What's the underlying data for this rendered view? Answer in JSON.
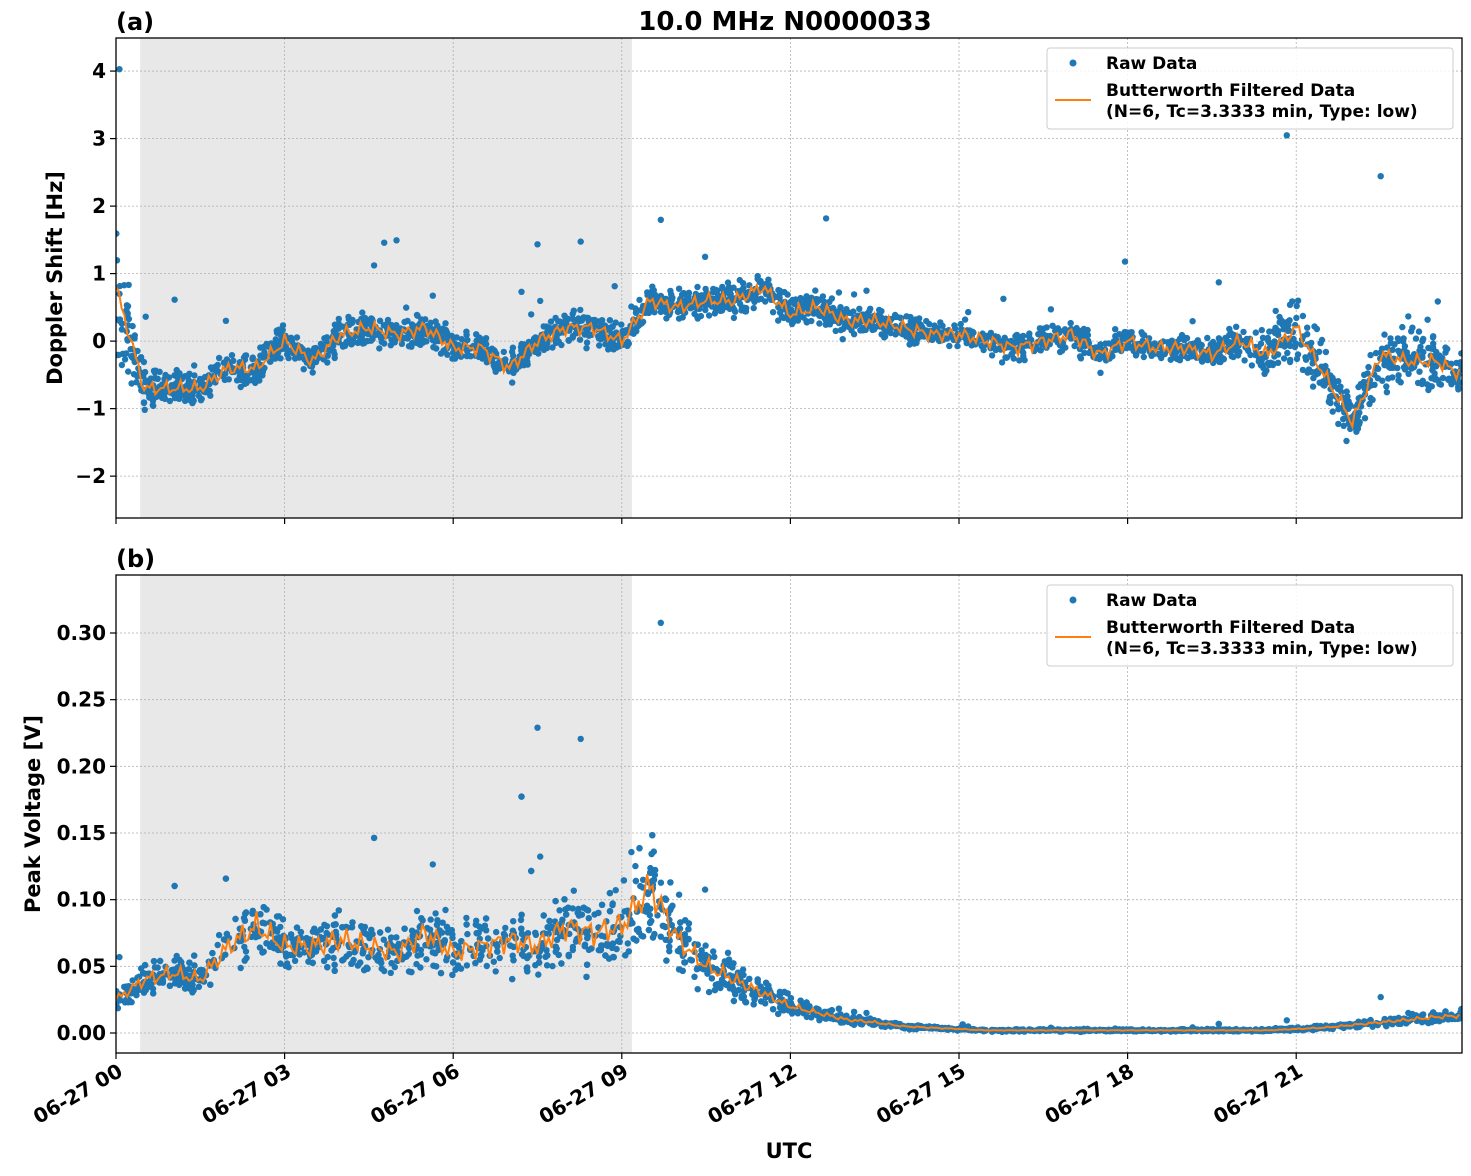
{
  "title": "10.0 MHz N0000033",
  "colors": {
    "raw": "#1f77b4",
    "filtered": "#ff7f0e",
    "night_shade": "#e8e8e8",
    "grid": "#b0b0b0"
  },
  "chart_data": [
    {
      "type": "scatter",
      "panel_label": "(a)",
      "ylabel": "Doppler Shift [Hz]",
      "xlabel": "",
      "xlim_hours_utc": [
        0,
        23.95
      ],
      "ylim": [
        -2.62,
        4.49
      ],
      "yticks": [
        -2,
        -1,
        0,
        1,
        2,
        3,
        4
      ],
      "ytick_labels": [
        "−2",
        "−1",
        "0",
        "1",
        "2",
        "3",
        "4"
      ],
      "grid": true,
      "legend_position": "top-right",
      "shaded_interval_hours_utc": [
        0.43,
        9.18
      ],
      "legend": [
        "Raw Data",
        "Butterworth Filtered Data",
        "(N=6, Tc=3.3333 min, Type: low)"
      ],
      "x_hours_utc": [
        0,
        0.5,
        1,
        1.5,
        2,
        2.5,
        3,
        3.5,
        4,
        4.5,
        5,
        5.5,
        6,
        6.5,
        7,
        7.5,
        8,
        8.5,
        9,
        9.5,
        10,
        10.5,
        11,
        11.5,
        12,
        12.5,
        13,
        13.5,
        14,
        14.5,
        15,
        15.5,
        16,
        16.5,
        17,
        17.5,
        18,
        18.5,
        19,
        19.5,
        20,
        20.5,
        21,
        21.5,
        22,
        22.5,
        23,
        23.5,
        23.95
      ],
      "series": [
        {
          "name": "Butterworth Filtered Data",
          "values": [
            0.8,
            -0.7,
            -0.7,
            -0.7,
            -0.4,
            -0.4,
            0,
            -0.3,
            0.1,
            0.2,
            0.1,
            0.2,
            -0.1,
            -0.1,
            -0.4,
            0,
            0.2,
            0.2,
            0,
            0.6,
            0.5,
            0.6,
            0.6,
            0.8,
            0.4,
            0.5,
            0.3,
            0.3,
            0.2,
            0.1,
            0.1,
            0,
            -0.1,
            0,
            0.1,
            -0.2,
            0,
            -0.1,
            -0.1,
            -0.2,
            0,
            -0.2,
            0.2,
            -0.5,
            -1.2,
            -0.2,
            -0.3,
            -0.3,
            -0.5
          ]
        },
        {
          "name": "Raw Data",
          "values": [
            0.8,
            -0.7,
            -0.7,
            -0.7,
            -0.4,
            -0.4,
            0,
            -0.3,
            0.1,
            0.2,
            0.1,
            0.2,
            -0.1,
            -0.1,
            -0.4,
            0,
            0.2,
            0.2,
            0,
            0.6,
            0.5,
            0.6,
            0.6,
            0.8,
            0.4,
            0.5,
            0.3,
            0.3,
            0.2,
            0.1,
            0.1,
            0,
            -0.1,
            0,
            0.1,
            -0.2,
            0,
            -0.1,
            -0.1,
            -0.2,
            0,
            -0.2,
            0.2,
            -0.5,
            -1.2,
            -0.2,
            -0.3,
            -0.3,
            -0.5
          ],
          "spread": [
            1.6,
            0.45,
            0.4,
            0.4,
            0.4,
            0.45,
            0.4,
            0.4,
            0.4,
            0.4,
            0.4,
            0.4,
            0.35,
            0.35,
            0.35,
            0.35,
            0.4,
            0.4,
            0.4,
            0.35,
            0.35,
            0.35,
            0.4,
            0.45,
            0.35,
            0.35,
            0.35,
            0.3,
            0.3,
            0.3,
            0.3,
            0.3,
            0.35,
            0.35,
            0.35,
            0.3,
            0.3,
            0.3,
            0.3,
            0.3,
            0.4,
            0.6,
            0.9,
            0.8,
            0.6,
            0.7,
            0.8,
            0.7,
            0.5
          ]
        }
      ]
    },
    {
      "type": "scatter",
      "panel_label": "(b)",
      "ylabel": "Peak Voltage [V]",
      "xlabel": "UTC",
      "xlim_hours_utc": [
        0,
        23.95
      ],
      "ylim": [
        -0.015,
        0.3435
      ],
      "yticks": [
        0,
        0.05,
        0.1,
        0.15,
        0.2,
        0.25,
        0.3
      ],
      "ytick_labels": [
        "0.00",
        "0.05",
        "0.10",
        "0.15",
        "0.20",
        "0.25",
        "0.30"
      ],
      "xticks_hours_utc": [
        0,
        3,
        6,
        9,
        12,
        15,
        18,
        21
      ],
      "xtick_labels": [
        "06-27 00",
        "06-27 03",
        "06-27 06",
        "06-27 09",
        "06-27 12",
        "06-27 15",
        "06-27 18",
        "06-27 21"
      ],
      "grid": true,
      "legend_position": "top-right",
      "shaded_interval_hours_utc": [
        0.43,
        9.18
      ],
      "legend": [
        "Raw Data",
        "Butterworth Filtered Data",
        "(N=6, Tc=3.3333 min, Type: low)"
      ],
      "x_hours_utc": [
        0,
        0.5,
        1,
        1.5,
        2,
        2.5,
        3,
        3.5,
        4,
        4.5,
        5,
        5.5,
        6,
        6.5,
        7,
        7.5,
        8,
        8.5,
        9,
        9.5,
        10,
        10.5,
        11,
        11.5,
        12,
        12.5,
        13,
        13.5,
        14,
        14.5,
        15,
        15.5,
        16,
        16.5,
        17,
        17.5,
        18,
        18.5,
        19,
        19.5,
        20,
        20.5,
        21,
        21.5,
        22,
        22.5,
        23,
        23.5,
        23.95
      ],
      "series": [
        {
          "name": "Butterworth Filtered Data",
          "values": [
            0.025,
            0.04,
            0.045,
            0.04,
            0.065,
            0.08,
            0.065,
            0.065,
            0.07,
            0.065,
            0.06,
            0.075,
            0.06,
            0.065,
            0.07,
            0.065,
            0.08,
            0.075,
            0.08,
            0.11,
            0.07,
            0.05,
            0.04,
            0.03,
            0.02,
            0.015,
            0.01,
            0.008,
            0.005,
            0.004,
            0.003,
            0.002,
            0.002,
            0.002,
            0.002,
            0.002,
            0.002,
            0.002,
            0.002,
            0.002,
            0.002,
            0.002,
            0.003,
            0.004,
            0.006,
            0.008,
            0.01,
            0.012,
            0.013
          ]
        },
        {
          "name": "Raw Data",
          "values": [
            0.025,
            0.04,
            0.045,
            0.04,
            0.065,
            0.08,
            0.065,
            0.065,
            0.07,
            0.065,
            0.06,
            0.075,
            0.06,
            0.065,
            0.07,
            0.065,
            0.08,
            0.075,
            0.08,
            0.11,
            0.07,
            0.05,
            0.04,
            0.03,
            0.02,
            0.015,
            0.01,
            0.008,
            0.005,
            0.004,
            0.003,
            0.002,
            0.002,
            0.002,
            0.002,
            0.002,
            0.002,
            0.002,
            0.002,
            0.002,
            0.002,
            0.002,
            0.003,
            0.004,
            0.006,
            0.008,
            0.01,
            0.012,
            0.013
          ],
          "spread": [
            0.012,
            0.02,
            0.02,
            0.02,
            0.03,
            0.04,
            0.03,
            0.03,
            0.035,
            0.035,
            0.035,
            0.04,
            0.035,
            0.035,
            0.04,
            0.04,
            0.045,
            0.045,
            0.05,
            0.07,
            0.045,
            0.03,
            0.025,
            0.018,
            0.012,
            0.008,
            0.006,
            0.004,
            0.003,
            0.002,
            0.002,
            0.0015,
            0.0015,
            0.0015,
            0.0015,
            0.0015,
            0.0015,
            0.0015,
            0.0015,
            0.0015,
            0.0015,
            0.0015,
            0.002,
            0.003,
            0.004,
            0.005,
            0.006,
            0.007,
            0.008
          ]
        }
      ]
    }
  ]
}
